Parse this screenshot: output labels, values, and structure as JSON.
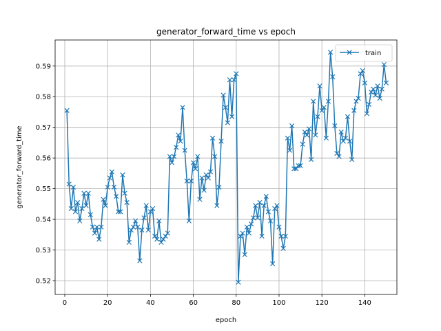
{
  "chart_data": {
    "type": "line",
    "title": "generator_forward_time vs epoch",
    "xlabel": "epoch",
    "ylabel": "generator_forward_time",
    "xlim": [
      -4.5,
      155
    ],
    "ylim": [
      0.5155,
      0.5985
    ],
    "xticks": [
      0,
      20,
      40,
      60,
      80,
      100,
      120,
      140
    ],
    "yticks": [
      0.52,
      0.53,
      0.54,
      0.55,
      0.56,
      0.57,
      0.58,
      0.59
    ],
    "ytick_labels": [
      "0.52",
      "0.53",
      "0.54",
      "0.55",
      "0.56",
      "0.57",
      "0.58",
      "0.59"
    ],
    "grid": true,
    "legend": "upper right",
    "series": [
      {
        "name": "train",
        "color": "#1f77b4",
        "marker": "x",
        "x": [
          1,
          2,
          3,
          4,
          5,
          6,
          7,
          8,
          9,
          10,
          11,
          12,
          13,
          14,
          15,
          16,
          17,
          18,
          19,
          20,
          21,
          22,
          23,
          24,
          25,
          26,
          27,
          28,
          29,
          30,
          31,
          32,
          33,
          34,
          35,
          36,
          37,
          38,
          39,
          40,
          41,
          42,
          43,
          44,
          45,
          46,
          47,
          48,
          49,
          50,
          51,
          52,
          53,
          54,
          55,
          56,
          57,
          58,
          59,
          60,
          61,
          62,
          63,
          64,
          65,
          66,
          67,
          68,
          69,
          70,
          71,
          72,
          73,
          74,
          75,
          76,
          77,
          78,
          79,
          80,
          81,
          82,
          83,
          84,
          85,
          86,
          87,
          88,
          89,
          90,
          91,
          92,
          93,
          94,
          95,
          96,
          97,
          98,
          99,
          100,
          101,
          102,
          103,
          104,
          105,
          106,
          107,
          108,
          109,
          110,
          111,
          112,
          113,
          114,
          115,
          116,
          117,
          118,
          119,
          120,
          121,
          122,
          123,
          124,
          125,
          126,
          127,
          128,
          129,
          130,
          131,
          132,
          133,
          134,
          135,
          136,
          137,
          138,
          139,
          140,
          141,
          142,
          143,
          144,
          145,
          146,
          147,
          148,
          149,
          150
        ],
        "y": [
          0.5755,
          0.5515,
          0.5435,
          0.5505,
          0.5425,
          0.5455,
          0.5395,
          0.5435,
          0.5485,
          0.5445,
          0.5485,
          0.5415,
          0.5375,
          0.5355,
          0.5375,
          0.5335,
          0.5375,
          0.5465,
          0.5445,
          0.5505,
          0.5535,
          0.5555,
          0.5505,
          0.5475,
          0.5425,
          0.5425,
          0.5545,
          0.5485,
          0.5455,
          0.5325,
          0.5365,
          0.5375,
          0.5395,
          0.5375,
          0.5265,
          0.5365,
          0.5405,
          0.5445,
          0.5365,
          0.5425,
          0.5435,
          0.5345,
          0.5335,
          0.5395,
          0.5325,
          0.5335,
          0.5345,
          0.5355,
          0.5605,
          0.5585,
          0.5605,
          0.5635,
          0.5675,
          0.5655,
          0.5765,
          0.5625,
          0.5525,
          0.5395,
          0.5525,
          0.5585,
          0.5565,
          0.5605,
          0.5465,
          0.5535,
          0.5495,
          0.5545,
          0.5535,
          0.5555,
          0.5665,
          0.5605,
          0.5445,
          0.5505,
          0.5655,
          0.5805,
          0.5765,
          0.5715,
          0.5855,
          0.5735,
          0.5855,
          0.5875,
          0.5195,
          0.5345,
          0.5355,
          0.5285,
          0.5375,
          0.5355,
          0.5385,
          0.5405,
          0.5445,
          0.5405,
          0.5455,
          0.5345,
          0.5445,
          0.5475,
          0.5425,
          0.5395,
          0.5255,
          0.5435,
          0.5445,
          0.5375,
          0.5345,
          0.5305,
          0.5345,
          0.5665,
          0.5625,
          0.5705,
          0.5565,
          0.5565,
          0.5575,
          0.5575,
          0.5645,
          0.5685,
          0.5675,
          0.5695,
          0.5595,
          0.5785,
          0.5675,
          0.5735,
          0.5835,
          0.5755,
          0.5765,
          0.5665,
          0.5785,
          0.5945,
          0.5865,
          0.5705,
          0.5615,
          0.5605,
          0.5685,
          0.5655,
          0.5665,
          0.5735,
          0.5655,
          0.5595,
          0.5755,
          0.5785,
          0.5795,
          0.5875,
          0.5885,
          0.5845,
          0.5745,
          0.5775,
          0.5815,
          0.5825,
          0.5805,
          0.5835,
          0.5795,
          0.5825,
          0.5905,
          0.5845
        ]
      }
    ]
  }
}
